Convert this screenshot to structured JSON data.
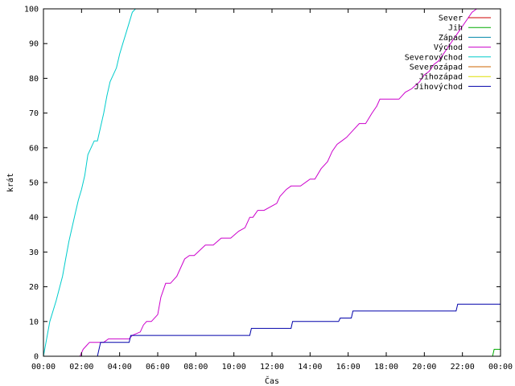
{
  "chart_data": {
    "type": "line",
    "title": "",
    "xlabel": "Čas",
    "ylabel": "krát",
    "xlim": [
      0,
      1440
    ],
    "ylim": [
      0,
      100
    ],
    "x_tick_labels": [
      "00:00",
      "02:00",
      "04:00",
      "06:00",
      "08:00",
      "10:00",
      "12:00",
      "14:00",
      "16:00",
      "18:00",
      "20:00",
      "22:00",
      "00:00"
    ],
    "y_tick_labels": [
      "0",
      "10",
      "20",
      "30",
      "40",
      "50",
      "60",
      "70",
      "80",
      "90",
      "100"
    ],
    "grid": false,
    "legend_position": "top-right",
    "series": [
      {
        "name": "Sever",
        "color": "#cc0000",
        "x": [],
        "y": []
      },
      {
        "name": "Jih",
        "color": "#00aa00",
        "x": [
          "23:35",
          "23:40",
          "23:59"
        ],
        "y": [
          0,
          2,
          2
        ]
      },
      {
        "name": "Západ",
        "color": "#0088aa",
        "x": [],
        "y": []
      },
      {
        "name": "Východ",
        "color": "#cc00cc",
        "x": [
          "01:55",
          "02:05",
          "02:15",
          "02:25",
          "02:30",
          "02:40",
          "02:50",
          "03:00",
          "03:10",
          "03:25",
          "03:40",
          "03:50",
          "04:20",
          "04:30",
          "04:40",
          "05:05",
          "05:15",
          "05:25",
          "05:40",
          "06:00",
          "06:10",
          "06:25",
          "06:40",
          "07:00",
          "07:25",
          "07:40",
          "07:55",
          "08:30",
          "08:55",
          "09:20",
          "09:50",
          "10:15",
          "10:35",
          "10:50",
          "11:00",
          "11:15",
          "11:35",
          "12:15",
          "12:25",
          "12:45",
          "13:00",
          "13:30",
          "14:00",
          "14:15",
          "14:35",
          "14:55",
          "15:10",
          "15:25",
          "15:40",
          "15:55",
          "16:15",
          "16:35",
          "16:55",
          "17:15",
          "17:30",
          "17:40",
          "17:50",
          "18:05",
          "18:40",
          "19:00",
          "19:20",
          "19:45",
          "20:00",
          "20:15",
          "20:30",
          "20:45",
          "21:00",
          "21:15",
          "21:30",
          "21:45",
          "22:00",
          "22:15",
          "22:30",
          "22:45"
        ],
        "y": [
          0,
          2,
          3,
          4,
          4,
          4,
          4,
          4,
          4,
          5,
          5,
          5,
          5,
          5,
          6,
          7,
          9,
          10,
          10,
          12,
          17,
          21,
          21,
          23,
          28,
          29,
          29,
          32,
          32,
          34,
          34,
          36,
          37,
          40,
          40,
          42,
          42,
          44,
          46,
          48,
          49,
          49,
          51,
          51,
          54,
          56,
          59,
          61,
          62,
          63,
          65,
          67,
          67,
          70,
          72,
          74,
          74,
          74,
          74,
          76,
          77,
          79,
          81,
          82,
          84,
          85,
          87,
          89,
          91,
          93,
          95,
          97,
          99,
          100
        ]
      },
      {
        "name": "Severovýchod",
        "color": "#00cccc",
        "x": [
          "00:00",
          "00:20",
          "00:40",
          "01:00",
          "01:10",
          "01:20",
          "01:40",
          "01:50",
          "02:00",
          "02:10",
          "02:20",
          "02:40",
          "02:50",
          "03:00",
          "03:10",
          "03:20",
          "03:30",
          "03:50",
          "04:00",
          "04:10",
          "04:20",
          "04:30",
          "04:40",
          "04:50",
          "05:00"
        ],
        "y": [
          0,
          10,
          16,
          23,
          28,
          33,
          41,
          45,
          48,
          52,
          58,
          62,
          62,
          66,
          70,
          75,
          79,
          83,
          87,
          90,
          93,
          96,
          99,
          100,
          100
        ]
      },
      {
        "name": "Severozápad",
        "color": "#cc6600",
        "x": [],
        "y": []
      },
      {
        "name": "Jihozápad",
        "color": "#dddd00",
        "x": [],
        "y": []
      },
      {
        "name": "Jihovýchod",
        "color": "#0000aa",
        "x": [
          "02:50",
          "03:00",
          "04:30",
          "04:35",
          "10:50",
          "10:55",
          "13:00",
          "13:05",
          "15:30",
          "15:35",
          "16:10",
          "16:15",
          "21:40",
          "21:45",
          "24:00"
        ],
        "y": [
          0,
          4,
          4,
          6,
          6,
          8,
          8,
          10,
          10,
          11,
          11,
          13,
          13,
          15,
          15
        ]
      }
    ]
  }
}
